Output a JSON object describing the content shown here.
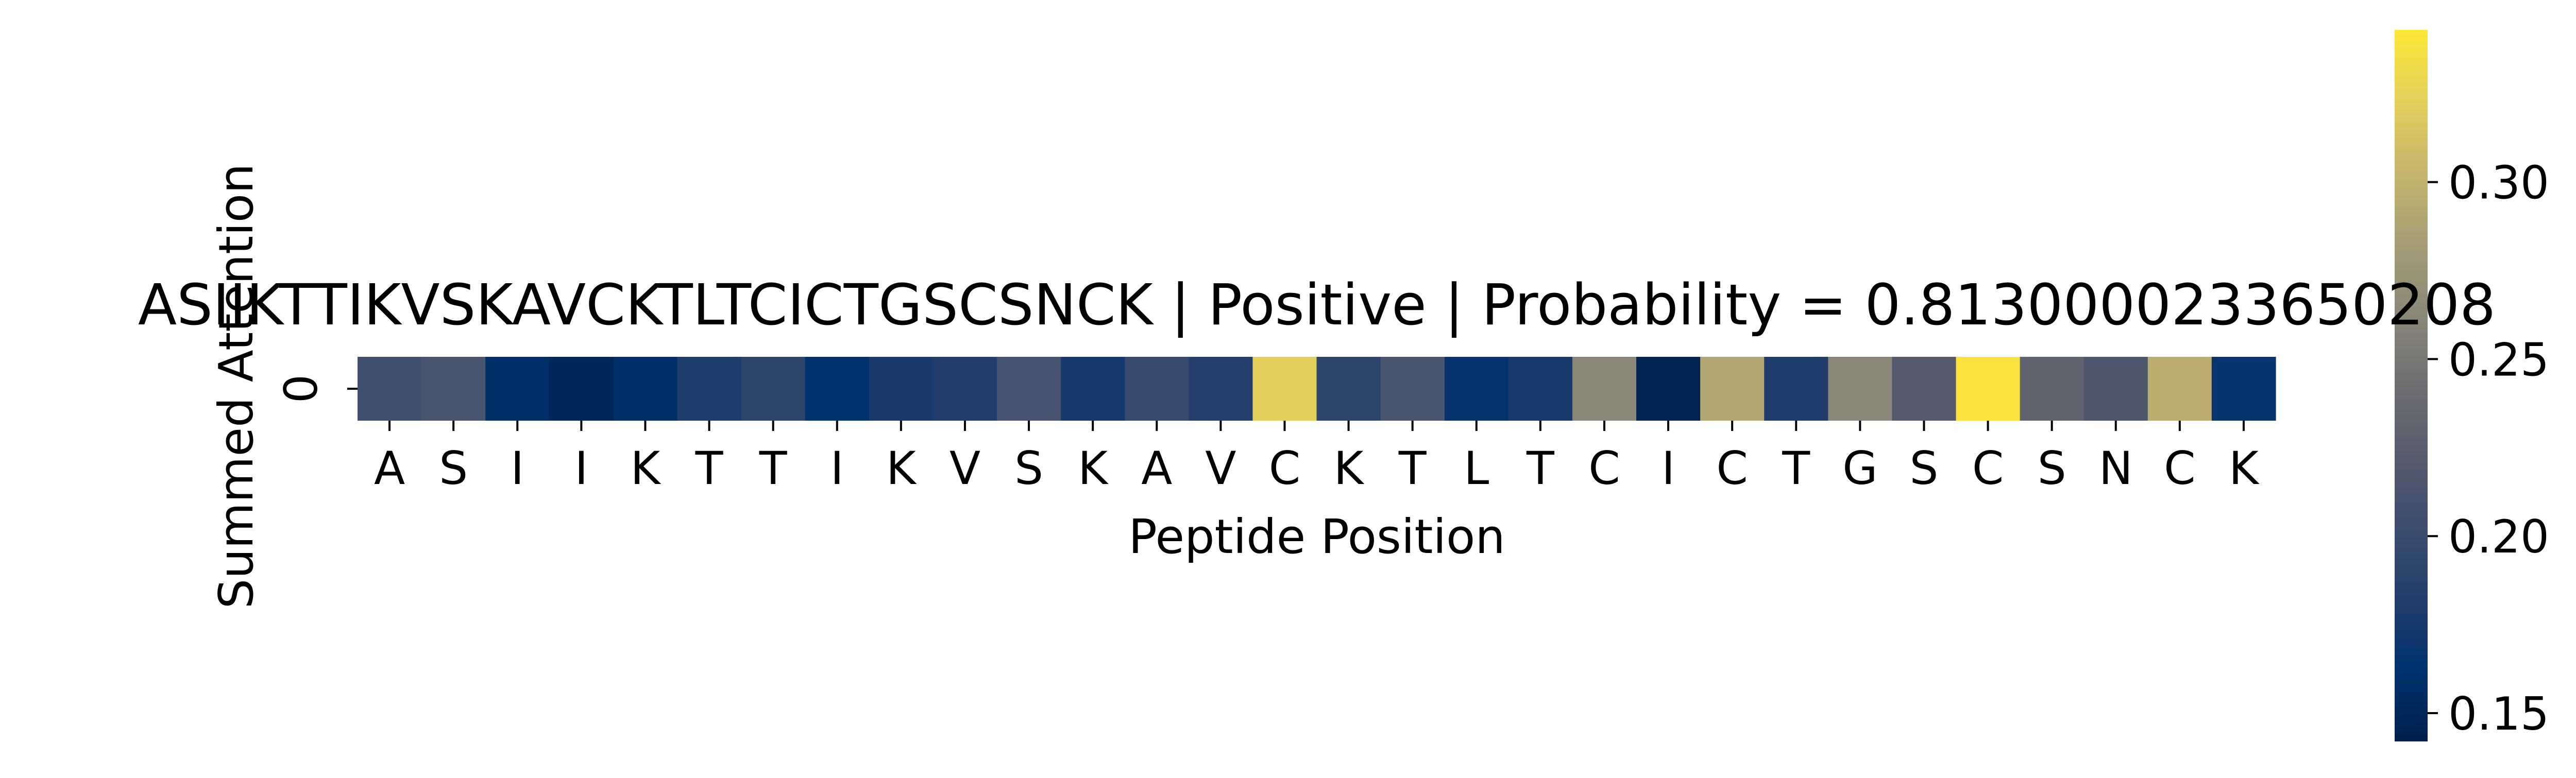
{
  "chart_data": {
    "type": "heatmap",
    "title": "ASIIKTTIKVSKAVCKTLTCICTGSCSNCK | Positive | Probability = 0.8130000233650208",
    "xlabel": "Peptide Position",
    "ylabel": "Summed Attention",
    "y_categories": [
      "0"
    ],
    "x_categories": [
      "A",
      "S",
      "I",
      "I",
      "K",
      "T",
      "T",
      "I",
      "K",
      "V",
      "S",
      "K",
      "A",
      "V",
      "C",
      "K",
      "T",
      "L",
      "T",
      "C",
      "I",
      "C",
      "T",
      "G",
      "S",
      "C",
      "S",
      "N",
      "C",
      "K"
    ],
    "values": [
      [
        0.206,
        0.212,
        0.158,
        0.15,
        0.158,
        0.18,
        0.19,
        0.162,
        0.178,
        0.182,
        0.21,
        0.175,
        0.198,
        0.184,
        0.322,
        0.19,
        0.212,
        0.166,
        0.176,
        0.262,
        0.145,
        0.29,
        0.18,
        0.262,
        0.22,
        0.34,
        0.23,
        0.215,
        0.296,
        0.165
      ]
    ],
    "colormap": "cividis",
    "colorbar": {
      "ticks": [
        0.15,
        0.2,
        0.25,
        0.3
      ],
      "tick_labels": [
        "0.15",
        "0.20",
        "0.25",
        "0.30"
      ],
      "vmin": 0.142,
      "vmax": 0.343
    },
    "cmap_colors": [
      "#00204c",
      "#00326f",
      "#233e6c",
      "#3c4d6e",
      "#575c6d",
      "#6f6f73",
      "#8a8778",
      "#a69d75",
      "#c4b56c",
      "#e4cf5b",
      "#fde737"
    ]
  }
}
